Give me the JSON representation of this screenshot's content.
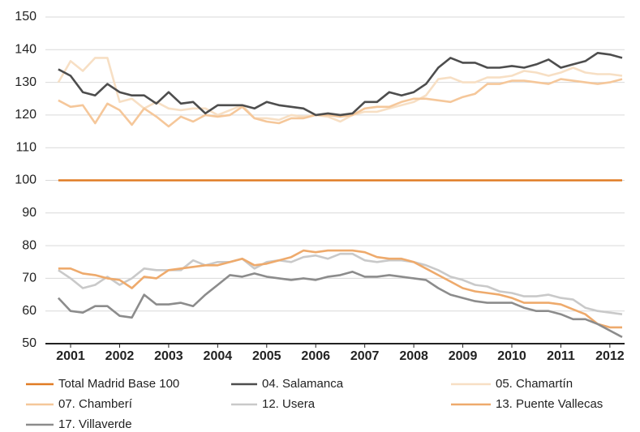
{
  "chart_data": {
    "type": "line",
    "x": [
      2000.75,
      2001,
      2001.25,
      2001.5,
      2001.75,
      2002,
      2002.25,
      2002.5,
      2002.75,
      2003,
      2003.25,
      2003.5,
      2003.75,
      2004,
      2004.25,
      2004.5,
      2004.75,
      2005,
      2005.25,
      2005.5,
      2005.75,
      2006,
      2006.25,
      2006.5,
      2006.75,
      2007,
      2007.25,
      2007.5,
      2007.75,
      2008,
      2008.25,
      2008.5,
      2008.75,
      2009,
      2009.25,
      2009.5,
      2009.75,
      2010,
      2010.25,
      2010.5,
      2010.75,
      2011,
      2011.25,
      2011.5,
      2011.75,
      2012,
      2012.25
    ],
    "xlim": [
      2000.7,
      2012.3
    ],
    "xticks": [
      2001,
      2002,
      2003,
      2004,
      2005,
      2006,
      2007,
      2008,
      2009,
      2010,
      2011,
      2012
    ],
    "ylim": [
      50,
      150
    ],
    "yticks": [
      50,
      60,
      70,
      80,
      90,
      100,
      110,
      120,
      130,
      140,
      150
    ],
    "grid": true,
    "series": [
      {
        "name": "05. Chamartín",
        "color": "#f7dfc4",
        "values": [
          130,
          136.5,
          133.5,
          137.5,
          137.5,
          124,
          125,
          122,
          124,
          122,
          121.5,
          122,
          122,
          120,
          121.5,
          123,
          119,
          119,
          118.5,
          120,
          119.5,
          120,
          119.5,
          118,
          120,
          121,
          121,
          122,
          123,
          124,
          126,
          131,
          131.5,
          130,
          130,
          131.5,
          131.5,
          132,
          133.5,
          133,
          132,
          133,
          134.5,
          133,
          132.5,
          132.5,
          132
        ]
      },
      {
        "name": "07. Chamberí",
        "color": "#f5c79a",
        "values": [
          124.5,
          122.5,
          123,
          117.5,
          123.5,
          121.5,
          117,
          122,
          119.5,
          116.5,
          119.5,
          118,
          120,
          119.5,
          120,
          122.5,
          119,
          118,
          117.5,
          119,
          119,
          120,
          120,
          119.5,
          120,
          122,
          122.5,
          122.5,
          124,
          125,
          125,
          124.5,
          124,
          125.5,
          126.5,
          129.5,
          129.5,
          130.5,
          130.5,
          130,
          129.5,
          131,
          130.5,
          130,
          129.5,
          130,
          131
        ]
      },
      {
        "name": "12. Usera",
        "color": "#c9c9c9",
        "values": [
          72.5,
          70,
          67,
          68,
          70.5,
          68,
          70,
          73,
          72.5,
          72.5,
          72.5,
          75.5,
          74,
          75,
          75,
          76,
          73,
          75,
          75.5,
          75,
          76.5,
          77,
          76,
          77.5,
          77.5,
          75.5,
          75,
          75.5,
          75.5,
          75,
          74,
          72.5,
          70.5,
          69.5,
          68,
          67.5,
          66,
          65.5,
          64.5,
          64.5,
          65,
          64,
          63.5,
          61,
          60,
          59.5,
          59
        ]
      },
      {
        "name": "13. Puente Vallecas",
        "color": "#eeaa6c",
        "values": [
          73,
          73,
          71.5,
          71,
          70,
          69.5,
          67,
          70.5,
          70,
          72.5,
          73,
          73.5,
          74,
          74,
          75,
          76,
          74,
          74.5,
          75.5,
          76.5,
          78.5,
          78,
          78.5,
          78.5,
          78.5,
          78,
          76.5,
          76,
          76,
          75,
          73,
          71,
          69,
          67,
          66,
          65.5,
          65,
          64,
          62.5,
          62.5,
          62.5,
          62,
          60.5,
          59,
          56,
          55,
          55
        ]
      },
      {
        "name": "17. Villaverde",
        "color": "#8c8c8c",
        "values": [
          64,
          60,
          59.5,
          61.5,
          61.5,
          58.5,
          58,
          65,
          62,
          62,
          62.5,
          61.5,
          65,
          68,
          71,
          70.5,
          71.5,
          70.5,
          70,
          69.5,
          70,
          69.5,
          70.5,
          71,
          72,
          70.5,
          70.5,
          71,
          70.5,
          70,
          69.5,
          67,
          65,
          64,
          63,
          62.5,
          62.5,
          62.5,
          61,
          60,
          60,
          59,
          57.5,
          57.5,
          56,
          54,
          52
        ]
      },
      {
        "name": "04. Salamanca",
        "color": "#4d4d4d",
        "values": [
          134,
          132,
          127,
          126,
          129.5,
          127,
          126,
          126,
          123.5,
          127,
          123.5,
          124,
          120.5,
          123,
          123,
          123,
          122,
          124,
          123,
          122.5,
          122,
          120,
          120.5,
          120,
          120.5,
          124,
          124,
          127,
          126,
          127,
          129.5,
          134.5,
          137.5,
          136,
          136,
          134.5,
          134.5,
          135,
          134.5,
          135.5,
          137,
          134.5,
          135.5,
          136.5,
          139,
          138.5,
          137.5
        ]
      },
      {
        "name": "Total Madrid Base 100",
        "color": "#e07b24",
        "values": [
          100,
          100,
          100,
          100,
          100,
          100,
          100,
          100,
          100,
          100,
          100,
          100,
          100,
          100,
          100,
          100,
          100,
          100,
          100,
          100,
          100,
          100,
          100,
          100,
          100,
          100,
          100,
          100,
          100,
          100,
          100,
          100,
          100,
          100,
          100,
          100,
          100,
          100,
          100,
          100,
          100,
          100,
          100,
          100,
          100,
          100,
          100
        ]
      }
    ],
    "legend_order": [
      6,
      5,
      0,
      1,
      2,
      3,
      4
    ]
  }
}
